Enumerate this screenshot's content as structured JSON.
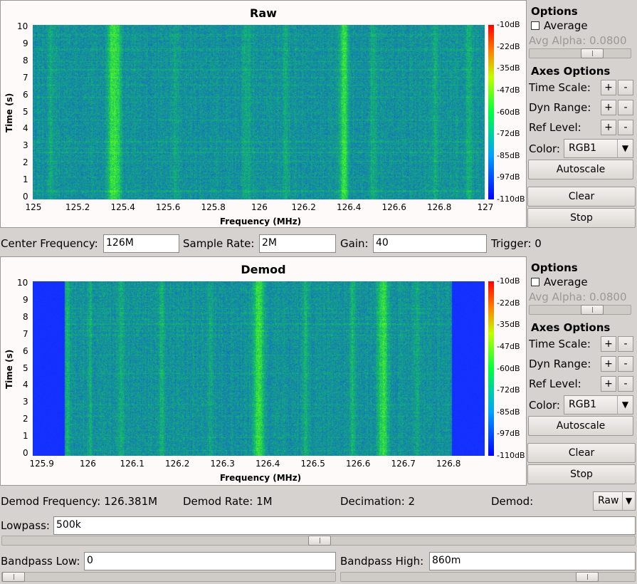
{
  "raw_plot": {
    "title": "Raw",
    "xlabel": "Frequency (MHz)",
    "ylabel": "Time (s)",
    "x_ticks": [
      "125",
      "125.2",
      "125.4",
      "125.6",
      "125.8",
      "126",
      "126.2",
      "126.4",
      "126.6",
      "126.8",
      "127"
    ],
    "y_ticks": [
      "0",
      "1",
      "2",
      "3",
      "4",
      "5",
      "6",
      "7",
      "8",
      "9",
      "10"
    ],
    "colorbar_ticks": [
      "-10dB",
      "-22dB",
      "-35dB",
      "-47dB",
      "-60dB",
      "-72dB",
      "-85dB",
      "-97dB",
      "-110dB"
    ]
  },
  "demod_plot": {
    "title": "Demod",
    "xlabel": "Frequency (MHz)",
    "ylabel": "Time (s)",
    "x_ticks": [
      "125.9",
      "126",
      "126.1",
      "126.2",
      "126.3",
      "126.4",
      "126.5",
      "126.6",
      "126.7",
      "126.8"
    ],
    "y_ticks": [
      "0",
      "1",
      "2",
      "3",
      "4",
      "5",
      "6",
      "7",
      "8",
      "9",
      "10"
    ],
    "colorbar_ticks": [
      "-10dB",
      "-22dB",
      "-35dB",
      "-47dB",
      "-60dB",
      "-72dB",
      "-85dB",
      "-97dB",
      "-110dB"
    ]
  },
  "raw_controls": {
    "options_title": "Options",
    "average_label": "Average",
    "avg_alpha_label": "Avg Alpha: 0.0800",
    "axes_options_title": "Axes Options",
    "time_scale_label": "Time Scale:",
    "dyn_range_label": "Dyn Range:",
    "ref_level_label": "Ref Level:",
    "color_label": "Color:",
    "color_value": "RGB1",
    "plus": "+",
    "minus": "-",
    "autoscale": "Autoscale",
    "clear": "Clear",
    "stop": "Stop"
  },
  "demod_controls": {
    "options_title": "Options",
    "average_label": "Average",
    "avg_alpha_label": "Avg Alpha: 0.0800",
    "axes_options_title": "Axes Options",
    "time_scale_label": "Time Scale:",
    "dyn_range_label": "Dyn Range:",
    "ref_level_label": "Ref Level:",
    "color_label": "Color:",
    "color_value": "RGB1",
    "plus": "+",
    "minus": "-",
    "autoscale": "Autoscale",
    "clear": "Clear",
    "stop": "Stop"
  },
  "params": {
    "center_freq_label": "Center Frequency:",
    "center_freq_value": "126M",
    "sample_rate_label": "Sample Rate:",
    "sample_rate_value": "2M",
    "gain_label": "Gain:",
    "gain_value": "40",
    "trigger_label": "Trigger: 0"
  },
  "demod_params": {
    "demod_freq": "Demod Frequency: 126.381M",
    "demod_rate": "Demod Rate: 1M",
    "decimation": "Decimation: 2",
    "demod_label": "Demod:",
    "demod_value": "Raw",
    "lowpass_label": "Lowpass:",
    "lowpass_value": "500k",
    "bandpass_low_label": "Bandpass Low:",
    "bandpass_low_value": "0",
    "bandpass_high_label": "Bandpass High:",
    "bandpass_high_value": "860m"
  }
}
